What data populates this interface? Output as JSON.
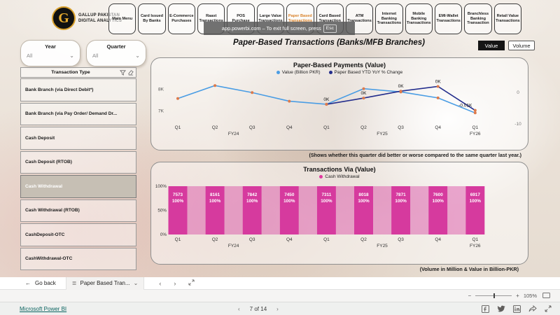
{
  "brand": {
    "logo_letter": "G",
    "line1": "GALLUP PAKISTAN",
    "line2": "DIGITAL ANALYTICS"
  },
  "overlay": {
    "text": "app.powerbi.com – To exit full screen, press",
    "key": "Esc"
  },
  "nav_tabs": [
    {
      "label": "Main Menu",
      "active": false
    },
    {
      "label": "Card Issued By Banks",
      "active": false
    },
    {
      "label": "E-Commerce Purchases",
      "active": false
    },
    {
      "label": "Raast Transactions",
      "active": false
    },
    {
      "label": "POS Purchase",
      "active": false
    },
    {
      "label": "Large Value Transactions",
      "active": false
    },
    {
      "label": "Paper Based Transactions",
      "active": true
    },
    {
      "label": "Card Based Transaction",
      "active": false
    },
    {
      "label": "ATM Transactions",
      "active": false
    },
    {
      "label": "Internet Banking Transactions",
      "active": false
    },
    {
      "label": "Mobile Banking Transactions",
      "active": false
    },
    {
      "label": "EMI-Wallet Transactions",
      "active": false
    },
    {
      "label": "Branchless Banking Transaction",
      "active": false
    },
    {
      "label": "Retail Value Transactions",
      "active": false
    }
  ],
  "page_title": "Paper-Based Transactions (Banks/MFB Branches)",
  "toggle": {
    "value": "Value",
    "volume": "Volume",
    "selected": "Value"
  },
  "filters": {
    "year": {
      "label": "Year",
      "value": "All"
    },
    "quarter": {
      "label": "Quarter",
      "value": "All"
    },
    "transaction_type": {
      "header": "Transaction Type",
      "selected": "Cash Withdrawal",
      "items": [
        "Bank Branch (via Direct Debit*)",
        "Bank Branch (via Pay Order/ Demand Dr...",
        "Cash Deposit",
        "Cash Deposit (RTOB)",
        "Cash Withdrawal",
        "Cash Withdrawal (RTOB)",
        "CashDeposit-OTC",
        "CashWithdrawal-OTC"
      ]
    }
  },
  "notes": {
    "line_chart": "(Shows whether this quarter did better or worse compared to the same quarter last year.)",
    "footer": "(Volume in Million & Value in Billion-PKR)"
  },
  "chart_data": [
    {
      "type": "line",
      "title": "Paper-Based Payments (Value)",
      "categories": [
        "Q1",
        "Q2",
        "Q3",
        "Q4",
        "Q1",
        "Q2",
        "Q3",
        "Q4",
        "Q1"
      ],
      "fiscal_years": [
        {
          "label": "FY24",
          "slot": 1.5
        },
        {
          "label": "FY25",
          "slot": 5.5
        },
        {
          "label": "FY26",
          "slot": 8
        }
      ],
      "series": [
        {
          "name": "Value (Billion PKR)",
          "color": "#4a9de4",
          "axis": "left",
          "values": [
            7573,
            8161,
            7842,
            7450,
            7311,
            8018,
            7871,
            7600,
            6917
          ]
        },
        {
          "name": "Paper Based YTD YoY % Change",
          "color": "#232d8c",
          "axis": "right",
          "values": [
            null,
            null,
            null,
            null,
            -3.8,
            -1.8,
            0.4,
            1.9,
            -5.7
          ],
          "labels": [
            null,
            null,
            null,
            null,
            "0K",
            "0K",
            "0K",
            "0K",
            "-0.01K"
          ]
        }
      ],
      "left_axis_ticks": [
        {
          "label": "8K",
          "value": 8000
        },
        {
          "label": "7K",
          "value": 7000
        }
      ],
      "right_axis_ticks": [
        {
          "label": "0",
          "value": 0
        },
        {
          "label": "-10",
          "value": -10
        }
      ],
      "marker_color": "#dd7a4b",
      "legend_position": "top",
      "grid": false
    },
    {
      "type": "bar",
      "title": "Transactions Via (Value)",
      "legend": "Cash Withdrawal",
      "categories": [
        "Q1",
        "Q2",
        "Q3",
        "Q4",
        "Q1",
        "Q2",
        "Q3",
        "Q4",
        "Q1"
      ],
      "fiscal_years": [
        {
          "label": "FY24",
          "slot": 1.5
        },
        {
          "label": "FY25",
          "slot": 5.5
        },
        {
          "label": "FY26",
          "slot": 8
        }
      ],
      "values": [
        7573,
        8161,
        7842,
        7450,
        7311,
        8018,
        7871,
        7600,
        6917
      ],
      "percent_labels": [
        "100%",
        "100%",
        "100%",
        "100%",
        "100%",
        "100%",
        "100%",
        "100%",
        "100%"
      ],
      "y_ticks": [
        "100%",
        "50%",
        "0%"
      ],
      "ylim": [
        0,
        100
      ],
      "bar_color": "#d63a9e",
      "gap_stripe_color": "rgba(214,58,158,0.42)",
      "legend_color": "#e0399f"
    }
  ],
  "powerbi": {
    "go_back": "Go back",
    "page_tab": "Paper Based Tran...",
    "zoom_level": "105%",
    "brand_link": "Microsoft Power BI",
    "page_indicator": "7 of 14"
  },
  "icons": {
    "back_arrow": "←",
    "pages": "≣",
    "chevron_down": "⌄",
    "chevron_left": "‹",
    "chevron_right": "›",
    "minus": "−",
    "plus": "+"
  }
}
